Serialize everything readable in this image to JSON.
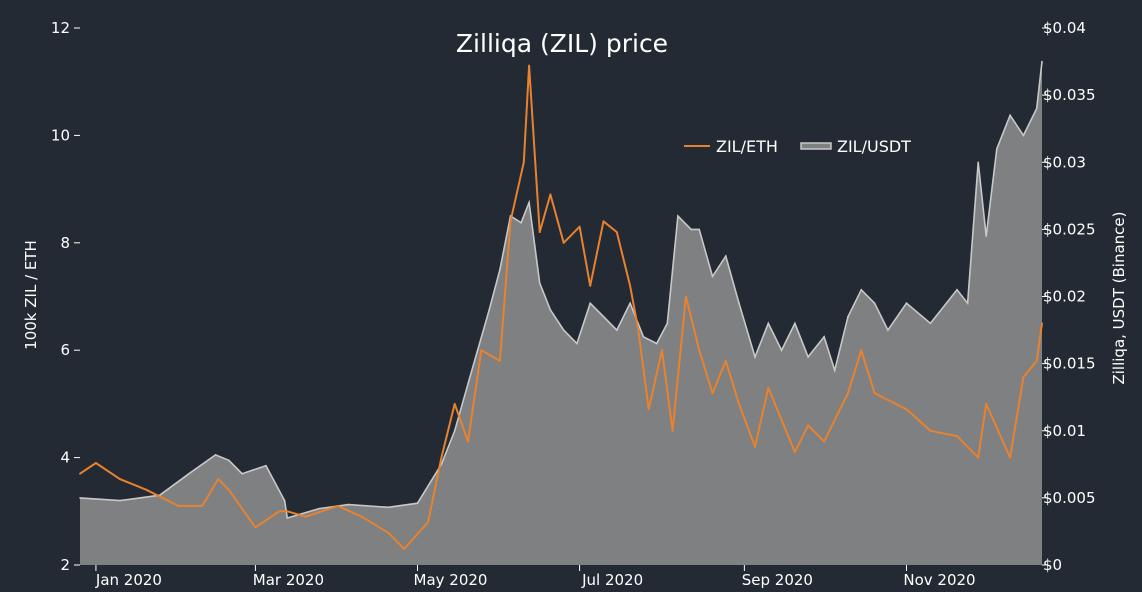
{
  "chart_data": {
    "type": "area",
    "title": "Zilliqa (ZIL) price",
    "ylabel_left": "100k ZIL / ETH",
    "ylabel_right": "Zilliqa, USDT (Binance)",
    "ylim_left": [
      2,
      12
    ],
    "ylim_right": [
      0,
      0.04
    ],
    "x_tick_labels": [
      "Jan 2020",
      "Mar 2020",
      "May 2020",
      "Jul 2020",
      "Sep 2020",
      "Nov 2020"
    ],
    "left_tick_labels": [
      "2",
      "4",
      "6",
      "8",
      "10",
      "12"
    ],
    "right_tick_labels": [
      "$0",
      "$0.005",
      "$0.01",
      "$0.015",
      "$0.02",
      "$0.025",
      "$0.03",
      "$0.035",
      "$0.04"
    ],
    "legend": {
      "placement": "top-right"
    },
    "series": [
      {
        "name": "ZIL/ETH",
        "axis": "left",
        "color": "#e8822f",
        "x": [
          "2019-12-26",
          "2020-01-01",
          "2020-01-10",
          "2020-01-20",
          "2020-02-01",
          "2020-02-10",
          "2020-02-16",
          "2020-02-20",
          "2020-03-01",
          "2020-03-10",
          "2020-03-13",
          "2020-03-20",
          "2020-04-01",
          "2020-04-10",
          "2020-04-20",
          "2020-04-26",
          "2020-05-05",
          "2020-05-10",
          "2020-05-15",
          "2020-05-20",
          "2020-05-25",
          "2020-06-01",
          "2020-06-05",
          "2020-06-10",
          "2020-06-12",
          "2020-06-16",
          "2020-06-20",
          "2020-06-25",
          "2020-07-01",
          "2020-07-05",
          "2020-07-10",
          "2020-07-15",
          "2020-07-20",
          "2020-07-23",
          "2020-07-27",
          "2020-08-01",
          "2020-08-05",
          "2020-08-10",
          "2020-08-15",
          "2020-08-20",
          "2020-08-25",
          "2020-08-30",
          "2020-09-05",
          "2020-09-10",
          "2020-09-20",
          "2020-09-25",
          "2020-10-01",
          "2020-10-10",
          "2020-10-15",
          "2020-10-20",
          "2020-11-01",
          "2020-11-10",
          "2020-11-20",
          "2020-11-28",
          "2020-12-01",
          "2020-12-10",
          "2020-12-15",
          "2020-12-20",
          "2020-12-22"
        ],
        "values": [
          3.7,
          3.9,
          3.6,
          3.4,
          3.1,
          3.1,
          3.6,
          3.4,
          2.7,
          3.0,
          3.0,
          2.9,
          3.1,
          2.9,
          2.6,
          2.3,
          2.8,
          4.0,
          5.0,
          4.3,
          6.0,
          5.8,
          8.4,
          9.5,
          11.3,
          8.2,
          8.9,
          8.0,
          8.3,
          7.2,
          8.4,
          8.2,
          7.2,
          6.4,
          4.9,
          6.0,
          4.5,
          7.0,
          6.0,
          5.2,
          5.8,
          5.0,
          4.2,
          5.3,
          4.1,
          4.6,
          4.3,
          5.2,
          6.0,
          5.2,
          4.9,
          4.5,
          4.4,
          4.0,
          5.0,
          4.0,
          5.5,
          5.8,
          6.5
        ]
      },
      {
        "name": "ZIL/USDT",
        "axis": "right",
        "color": "#c8c8c8",
        "x": [
          "2019-12-26",
          "2020-01-10",
          "2020-01-25",
          "2020-02-05",
          "2020-02-15",
          "2020-02-20",
          "2020-02-25",
          "2020-03-05",
          "2020-03-12",
          "2020-03-13",
          "2020-03-25",
          "2020-04-05",
          "2020-04-20",
          "2020-05-01",
          "2020-05-10",
          "2020-05-15",
          "2020-05-20",
          "2020-05-28",
          "2020-06-01",
          "2020-06-05",
          "2020-06-09",
          "2020-06-12",
          "2020-06-16",
          "2020-06-20",
          "2020-06-25",
          "2020-06-30",
          "2020-07-05",
          "2020-07-10",
          "2020-07-15",
          "2020-07-20",
          "2020-07-25",
          "2020-07-30",
          "2020-08-03",
          "2020-08-07",
          "2020-08-12",
          "2020-08-15",
          "2020-08-20",
          "2020-08-25",
          "2020-08-30",
          "2020-09-05",
          "2020-09-10",
          "2020-09-15",
          "2020-09-20",
          "2020-09-25",
          "2020-10-01",
          "2020-10-05",
          "2020-10-10",
          "2020-10-15",
          "2020-10-20",
          "2020-10-25",
          "2020-11-01",
          "2020-11-10",
          "2020-11-20",
          "2020-11-24",
          "2020-11-28",
          "2020-12-01",
          "2020-12-05",
          "2020-12-10",
          "2020-12-15",
          "2020-12-20",
          "2020-12-22"
        ],
        "values": [
          0.005,
          0.0048,
          0.0052,
          0.0068,
          0.0082,
          0.0078,
          0.0068,
          0.0074,
          0.0048,
          0.0035,
          0.0042,
          0.0045,
          0.0043,
          0.0046,
          0.0075,
          0.01,
          0.0135,
          0.019,
          0.022,
          0.026,
          0.0255,
          0.027,
          0.021,
          0.019,
          0.0175,
          0.0165,
          0.0195,
          0.0185,
          0.0175,
          0.0195,
          0.017,
          0.0165,
          0.018,
          0.026,
          0.025,
          0.025,
          0.0215,
          0.023,
          0.0195,
          0.0155,
          0.018,
          0.016,
          0.018,
          0.0155,
          0.017,
          0.0145,
          0.0185,
          0.0205,
          0.0195,
          0.0175,
          0.0195,
          0.018,
          0.0205,
          0.0195,
          0.03,
          0.0245,
          0.031,
          0.0335,
          0.032,
          0.034,
          0.0375
        ]
      }
    ]
  }
}
